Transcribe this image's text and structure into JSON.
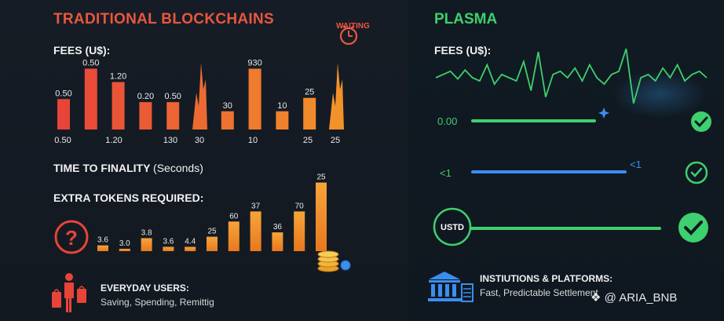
{
  "left_panel": {
    "title": "TRADITIONAL BLOCKCHAINS",
    "waiting_label": "WAITING",
    "fees_label": "FEES (U$):",
    "finality_label": "TIME TO FINALITY",
    "finality_unit": "(Seconds)",
    "extra_tokens_label": "EXTRA TOKENS REQUIRED:",
    "users_title": "EVERYDAY USERS:",
    "users_sub": "Saving, Spending, Remittig"
  },
  "right_panel": {
    "title": "PLASMA",
    "fees_label": "FEES (U$):",
    "fee_value": "0.00",
    "finality_value": "<1",
    "finality_value_right": "<1",
    "token_badge": "USTD",
    "inst_title": "INSTIUTIONS & PLATFORMS:",
    "inst_sub": "Fast, Predictable Settlement"
  },
  "watermark": "@ ARIA_BNB",
  "colors": {
    "red": "#e8573f",
    "orange": "#f28c28",
    "green": "#3ecf6e",
    "blue": "#3a8ef0"
  },
  "chart_data": [
    {
      "type": "bar",
      "title": "FEES (U$):",
      "bars": [
        {
          "label": "0.50",
          "value": 0.5
        },
        {
          "label": "0.50",
          "value": 1.0
        },
        {
          "label": "1.20",
          "value": 0.78
        },
        {
          "label": "0.20",
          "value": 0.45
        },
        {
          "label": "0.50",
          "value": 0.45
        },
        {
          "label": "",
          "value": 1.1,
          "shape": "spike"
        },
        {
          "label": "30",
          "value": 0.3
        },
        {
          "label": "930",
          "value": 1.0
        },
        {
          "label": "10",
          "value": 0.3
        },
        {
          "label": "25",
          "value": 0.52
        },
        {
          "label": "",
          "value": 1.1,
          "shape": "spike"
        }
      ],
      "x_ticks": [
        "0.50",
        "1.20",
        "130",
        "30",
        "10",
        "25",
        "25"
      ],
      "ylim": [
        0,
        1.2
      ],
      "colors": "red to orange gradient"
    },
    {
      "type": "bar",
      "title": "EXTRA TOKENS REQUIRED:",
      "bars": [
        {
          "label": "3.6",
          "value": 0.08
        },
        {
          "label": "3.0",
          "value": 0.02
        },
        {
          "label": "3.8",
          "value": 0.18
        },
        {
          "label": "3.6",
          "value": 0.06
        },
        {
          "label": "4.4",
          "value": 0.06
        },
        {
          "label": "25",
          "value": 0.2
        },
        {
          "label": "60",
          "value": 0.41
        },
        {
          "label": "37",
          "value": 0.55
        },
        {
          "label": "36",
          "value": 0.26
        },
        {
          "label": "70",
          "value": 0.55
        },
        {
          "label": "25",
          "value": 0.95
        }
      ],
      "ylim": [
        0,
        1.0
      ],
      "colors": "orange"
    },
    {
      "type": "line",
      "title": "FEES (U$):",
      "description_values": [
        0.5,
        0.55,
        0.6,
        0.48,
        0.62,
        0.5,
        0.45,
        0.7,
        0.4,
        0.55,
        0.5,
        0.45,
        0.75,
        0.3,
        0.9,
        0.2,
        0.55,
        0.6,
        0.5,
        0.65,
        0.45,
        0.7,
        0.5,
        0.4,
        0.55,
        0.6,
        0.95,
        0.1,
        0.5,
        0.55,
        0.45,
        0.65,
        0.5,
        0.7,
        0.45,
        0.55,
        0.6,
        0.5
      ],
      "ylim": [
        0,
        1
      ],
      "color": "#3ecf6e"
    }
  ]
}
